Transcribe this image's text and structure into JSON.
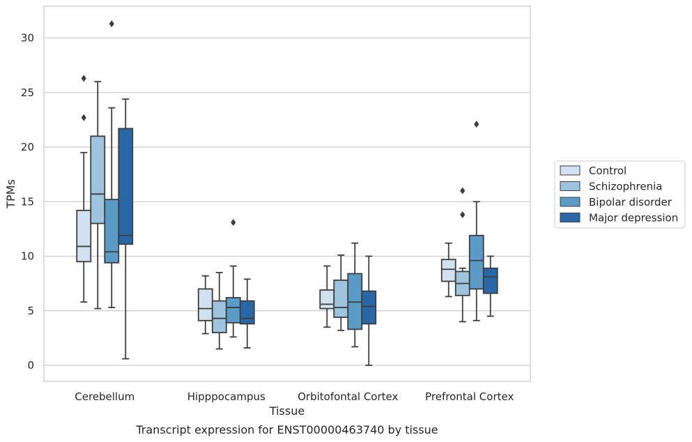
{
  "chart_data": {
    "type": "box",
    "title": "",
    "caption": "Transcript expression for ENST00000463740 by tissue",
    "xlabel": "Tissue",
    "ylabel": "TPMs",
    "ylim": [
      -1.4,
      33.0
    ],
    "yticks": [
      0,
      5,
      10,
      15,
      20,
      25,
      30
    ],
    "grid": "horizontal",
    "legend_position": "right",
    "categories": [
      "Cerebellum",
      "Hipppocampus",
      "Orbitofontal Cortex",
      "Prefrontal Cortex"
    ],
    "series": [
      {
        "name": "Control",
        "color": "#d1e1f0",
        "boxes": [
          {
            "whisker_low": 5.8,
            "q1": 9.5,
            "median": 10.9,
            "q3": 14.2,
            "whisker_high": 19.5,
            "outliers": [
              22.7,
              26.3
            ]
          },
          {
            "whisker_low": 2.9,
            "q1": 4.1,
            "median": 5.2,
            "q3": 7.0,
            "whisker_high": 8.2,
            "outliers": []
          },
          {
            "whisker_low": 3.5,
            "q1": 5.2,
            "median": 5.6,
            "q3": 6.9,
            "whisker_high": 9.1,
            "outliers": []
          },
          {
            "whisker_low": 6.3,
            "q1": 7.7,
            "median": 8.8,
            "q3": 9.7,
            "whisker_high": 11.2,
            "outliers": []
          }
        ]
      },
      {
        "name": "Schizophrenia",
        "color": "#9dc3dd",
        "boxes": [
          {
            "whisker_low": 5.2,
            "q1": 13.0,
            "median": 15.7,
            "q3": 21.0,
            "whisker_high": 26.0,
            "outliers": []
          },
          {
            "whisker_low": 1.5,
            "q1": 3.0,
            "median": 4.3,
            "q3": 5.9,
            "whisker_high": 8.5,
            "outliers": []
          },
          {
            "whisker_low": 3.2,
            "q1": 4.4,
            "median": 5.3,
            "q3": 7.8,
            "whisker_high": 10.1,
            "outliers": []
          },
          {
            "whisker_low": 4.0,
            "q1": 6.4,
            "median": 7.5,
            "q3": 8.6,
            "whisker_high": 8.9,
            "outliers": [
              13.8,
              16.0
            ]
          }
        ]
      },
      {
        "name": "Bipolar disorder",
        "color": "#5a9bc8",
        "boxes": [
          {
            "whisker_low": 5.3,
            "q1": 9.4,
            "median": 10.4,
            "q3": 15.2,
            "whisker_high": 23.6,
            "outliers": [
              31.3
            ]
          },
          {
            "whisker_low": 2.6,
            "q1": 3.9,
            "median": 5.3,
            "q3": 6.2,
            "whisker_high": 9.1,
            "outliers": [
              13.1
            ]
          },
          {
            "whisker_low": 1.7,
            "q1": 3.3,
            "median": 5.8,
            "q3": 8.4,
            "whisker_high": 11.2,
            "outliers": []
          },
          {
            "whisker_low": 4.1,
            "q1": 7.0,
            "median": 9.6,
            "q3": 11.9,
            "whisker_high": 15.0,
            "outliers": [
              22.1
            ]
          }
        ]
      },
      {
        "name": "Major depression",
        "color": "#2a67a6",
        "boxes": [
          {
            "whisker_low": 0.6,
            "q1": 11.1,
            "median": 11.9,
            "q3": 21.7,
            "whisker_high": 24.4,
            "outliers": []
          },
          {
            "whisker_low": 1.6,
            "q1": 3.8,
            "median": 4.3,
            "q3": 5.9,
            "whisker_high": 7.9,
            "outliers": []
          },
          {
            "whisker_low": 0.0,
            "q1": 3.8,
            "median": 5.4,
            "q3": 6.8,
            "whisker_high": 10.0,
            "outliers": []
          },
          {
            "whisker_low": 4.5,
            "q1": 6.6,
            "median": 8.1,
            "q3": 8.9,
            "whisker_high": 10.0,
            "outliers": []
          }
        ]
      }
    ]
  }
}
